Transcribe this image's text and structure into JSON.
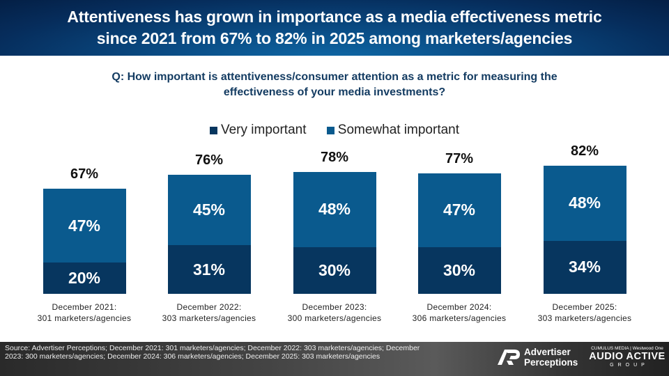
{
  "header": {
    "title_line1": "Attentiveness has grown in importance as a media effectiveness metric",
    "title_line2": "since 2021 from 67% to 82% in 2025 among marketers/agencies"
  },
  "question": {
    "line1": "Q: How important is attentiveness/consumer attention as a metric for measuring the",
    "line2": "effectiveness of your media investments?"
  },
  "colors": {
    "very_important": "#07365F",
    "somewhat_important": "#0A5A8E"
  },
  "chart_data": {
    "type": "bar",
    "stacked": true,
    "title": "Q: How important is attentiveness/consumer attention as a metric for measuring the effectiveness of your media investments?",
    "xlabel": "",
    "ylabel": "",
    "legend_position": "top-center",
    "grid": false,
    "categories": [
      {
        "line1": "December 2021:",
        "line2": "301 marketers/agencies"
      },
      {
        "line1": "December 2022:",
        "line2": "303 marketers/agencies"
      },
      {
        "line1": "December 2023:",
        "line2": "300 marketers/agencies"
      },
      {
        "line1": "December 2024:",
        "line2": "306 marketers/agencies"
      },
      {
        "line1": "December 2025:",
        "line2": "303 marketers/agencies"
      }
    ],
    "series": [
      {
        "name": "Very important",
        "values": [
          20,
          31,
          30,
          30,
          34
        ],
        "labels": [
          "20%",
          "31%",
          "30%",
          "30%",
          "34%"
        ]
      },
      {
        "name": "Somewhat important",
        "values": [
          47,
          45,
          48,
          47,
          48
        ],
        "labels": [
          "47%",
          "45%",
          "48%",
          "47%",
          "48%"
        ]
      }
    ],
    "totals": [
      "67%",
      "76%",
      "78%",
      "77%",
      "82%"
    ],
    "ylim": [
      0,
      100
    ]
  },
  "footer": {
    "source": "Source: Advertiser Perceptions; December 2021: 301 marketers/agencies; December 2022: 303 marketers/agencies; December 2023: 300 marketers/agencies; December 2024: 306 marketers/agencies; December 2025: 303 marketers/agencies",
    "logo_ap_line1": "Advertiser",
    "logo_ap_line2": "Perceptions",
    "logo_aag_top": "CUMULUS MEDIA | Westwood One",
    "logo_aag_main": "AUDIO ACTIVE",
    "logo_aag_sub": "GROUP"
  }
}
